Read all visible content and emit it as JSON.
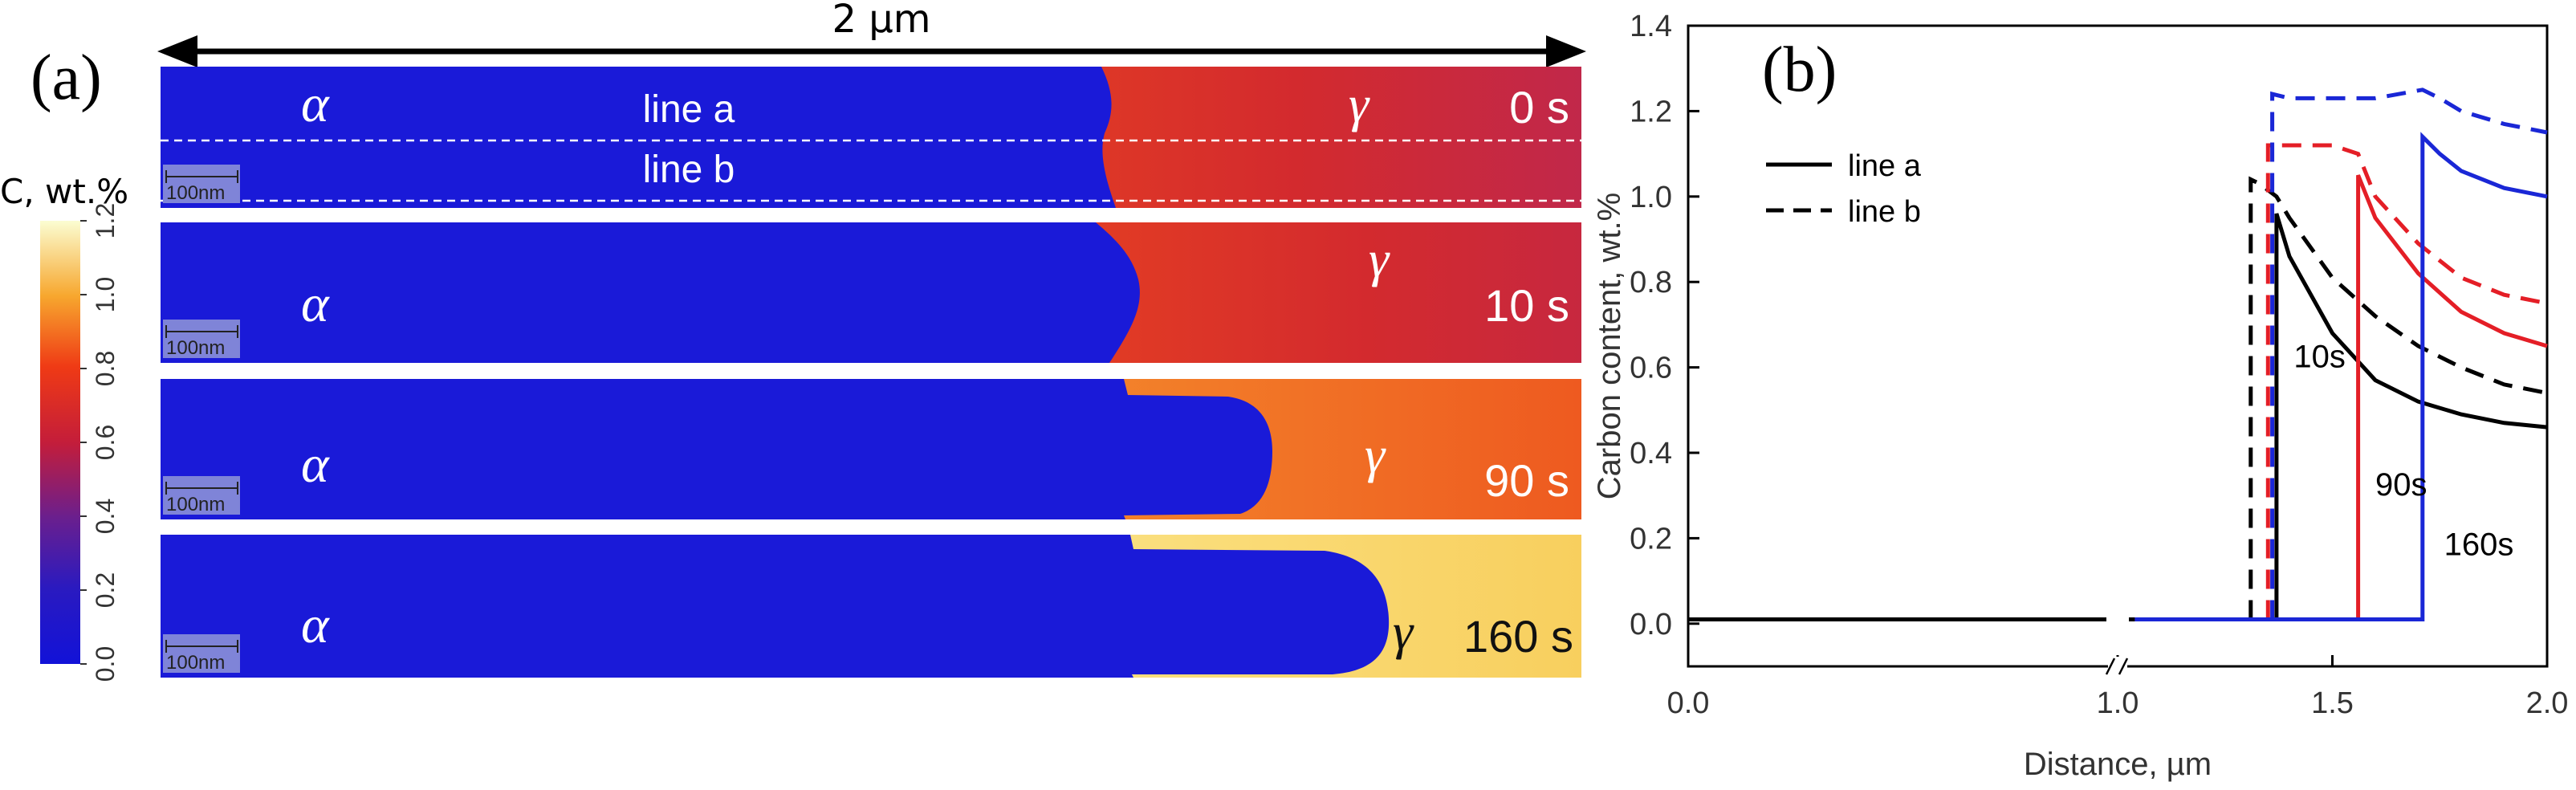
{
  "panel_a": {
    "label": "(a)",
    "scale_label": "2 µm",
    "colorbar": {
      "title": "C, wt.%",
      "ticks": [
        "0.0",
        "0.2",
        "0.4",
        "0.6",
        "0.8",
        "1.0",
        "1.2"
      ],
      "tick_values": [
        0.0,
        0.2,
        0.4,
        0.6,
        0.8,
        1.0,
        1.2
      ]
    },
    "line_labels": [
      "line a",
      "line b"
    ],
    "scalebar_label": "100nm",
    "phase_alpha": "α",
    "phase_gamma": "γ",
    "strips": [
      {
        "time": "0 s"
      },
      {
        "time": "10 s"
      },
      {
        "time": "90 s"
      },
      {
        "time": "160 s"
      }
    ]
  },
  "chart_data": {
    "type": "line",
    "panel_label": "(b)",
    "title": "",
    "xlabel": "Distance, µm",
    "ylabel": "Carbon content, wt.%",
    "xlim": [
      0.0,
      2.0
    ],
    "ylim": [
      -0.1,
      1.4
    ],
    "xticks": [
      "0.0",
      "1.0",
      "1.5",
      "2.0"
    ],
    "xtick_values": [
      0.0,
      1.0,
      1.5,
      2.0
    ],
    "yticks": [
      "0.0",
      "0.2",
      "0.4",
      "0.6",
      "0.8",
      "1.0",
      "1.2",
      "1.4"
    ],
    "ytick_values": [
      0.0,
      0.2,
      0.4,
      0.6,
      0.8,
      1.0,
      1.2,
      1.4
    ],
    "axis_break_x": 1.0,
    "legend": {
      "position": "top-left",
      "entries": [
        {
          "label": "line a",
          "style": "solid"
        },
        {
          "label": "line b",
          "style": "dashed"
        }
      ]
    },
    "annotations": [
      {
        "text": "10s",
        "x": 1.41,
        "y": 0.6
      },
      {
        "text": "90s",
        "x": 1.6,
        "y": 0.3
      },
      {
        "text": "160s",
        "x": 1.76,
        "y": 0.16
      }
    ],
    "series": [
      {
        "time": "10s",
        "line": "a",
        "style": "solid",
        "color": "#000000",
        "x": [
          0.0,
          0.96,
          1.04,
          1.37,
          1.37,
          1.4,
          1.5,
          1.6,
          1.7,
          1.8,
          1.9,
          2.0
        ],
        "y": [
          0.01,
          0.01,
          0.01,
          0.01,
          0.96,
          0.86,
          0.68,
          0.57,
          0.52,
          0.49,
          0.47,
          0.46
        ]
      },
      {
        "time": "10s",
        "line": "b",
        "style": "dashed",
        "color": "#000000",
        "x": [
          1.31,
          1.31,
          1.33,
          1.37,
          1.4,
          1.5,
          1.6,
          1.7,
          1.8,
          1.9,
          2.0
        ],
        "y": [
          0.01,
          1.04,
          1.03,
          1.0,
          0.95,
          0.81,
          0.72,
          0.65,
          0.6,
          0.56,
          0.54
        ]
      },
      {
        "time": "90s",
        "line": "a",
        "style": "solid",
        "color": "#e41e26",
        "x": [
          1.04,
          1.56,
          1.56,
          1.6,
          1.7,
          1.8,
          1.9,
          2.0
        ],
        "y": [
          0.01,
          0.01,
          1.05,
          0.95,
          0.82,
          0.73,
          0.68,
          0.65
        ]
      },
      {
        "time": "90s",
        "line": "b",
        "style": "dashed",
        "color": "#e41e26",
        "x": [
          1.35,
          1.35,
          1.4,
          1.5,
          1.56,
          1.6,
          1.7,
          1.8,
          1.9,
          2.0
        ],
        "y": [
          0.01,
          1.12,
          1.12,
          1.12,
          1.1,
          1.0,
          0.89,
          0.81,
          0.77,
          0.75
        ]
      },
      {
        "time": "160s",
        "line": "a",
        "style": "solid",
        "color": "#1a27d6",
        "x": [
          1.04,
          1.71,
          1.71,
          1.75,
          1.8,
          1.9,
          2.0
        ],
        "y": [
          0.01,
          0.01,
          1.14,
          1.1,
          1.06,
          1.02,
          1.0
        ]
      },
      {
        "time": "160s",
        "line": "b",
        "style": "dashed",
        "color": "#1a27d6",
        "x": [
          1.36,
          1.36,
          1.4,
          1.5,
          1.6,
          1.71,
          1.75,
          1.8,
          1.9,
          2.0
        ],
        "y": [
          0.01,
          1.24,
          1.23,
          1.23,
          1.23,
          1.25,
          1.23,
          1.2,
          1.17,
          1.15
        ]
      }
    ]
  }
}
